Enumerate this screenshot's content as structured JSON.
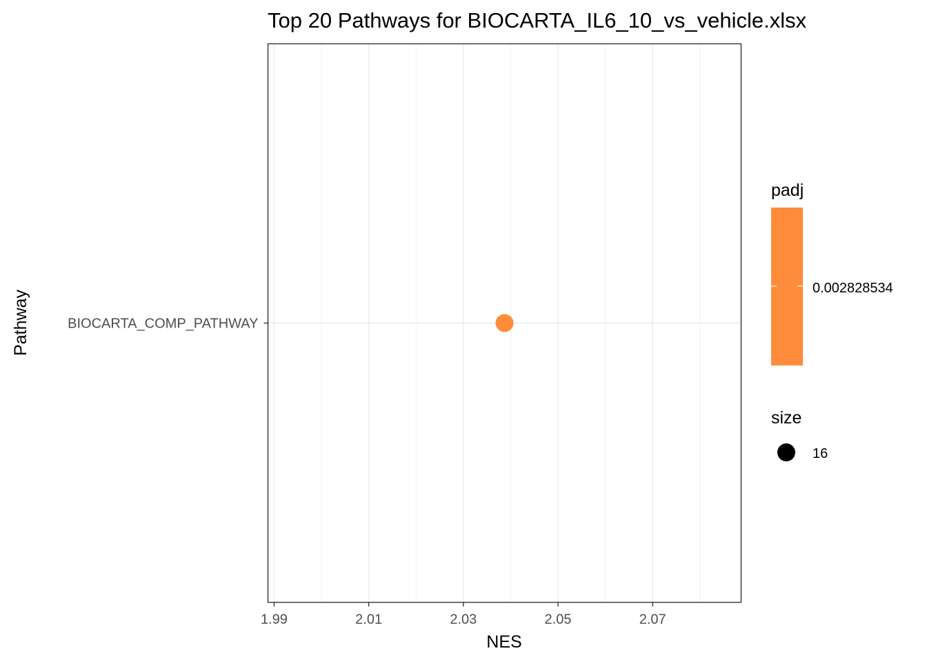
{
  "chart_data": {
    "type": "scatter",
    "title": "Top 20 Pathways for  BIOCARTA_IL6_10_vs_vehicle.xlsx",
    "xlabel": "NES",
    "ylabel": "Pathway",
    "x_ticks": [
      "1.99",
      "2.01",
      "2.03",
      "2.05",
      "2.07"
    ],
    "x_tick_values": [
      1.99,
      2.01,
      2.03,
      2.05,
      2.07
    ],
    "xlim": [
      1.9887,
      2.0887
    ],
    "grid": true,
    "categories": [
      "BIOCARTA_COMP_PATHWAY"
    ],
    "points": [
      {
        "pathway": "BIOCARTA_COMP_PATHWAY",
        "NES": 2.0387,
        "padj": 0.002828534,
        "size": 16,
        "color": "#FF8C3B"
      }
    ],
    "legend": {
      "placement": "right",
      "color": {
        "title": "padj",
        "label": "0.002828534",
        "color": "#FF8C3B"
      },
      "size": {
        "title": "size",
        "label": "16",
        "color": "#000000"
      }
    }
  }
}
